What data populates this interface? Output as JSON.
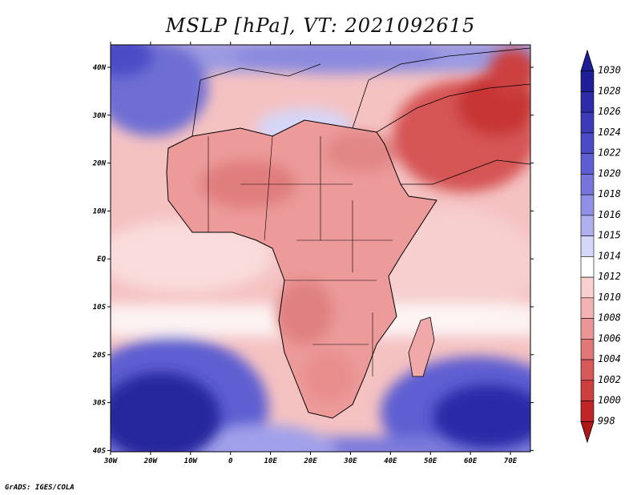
{
  "title": "MSLP [hPa], VT: 2021092615",
  "credit": "GrADS: IGES/COLA",
  "map": {
    "lon_range": [
      -30,
      75
    ],
    "lat_range": [
      -40,
      45
    ],
    "lon_ticks": [
      "30W",
      "20W",
      "10W",
      "0",
      "10E",
      "20E",
      "30E",
      "40E",
      "50E",
      "60E",
      "70E"
    ],
    "lat_ticks": [
      "40N",
      "30N",
      "20N",
      "10N",
      "EQ",
      "10S",
      "20S",
      "30S",
      "40S"
    ],
    "features": [
      "high-pressure-south-atlantic",
      "high-pressure-south-indian",
      "low-pressure-arabia",
      "african-continent",
      "madagascar"
    ]
  },
  "legend": {
    "levels": [
      "1030",
      "1028",
      "1026",
      "1024",
      "1022",
      "1020",
      "1018",
      "1016",
      "1015",
      "1014",
      "1012",
      "1010",
      "1008",
      "1006",
      "1004",
      "1002",
      "1000",
      "998"
    ],
    "colors": {
      "c1030": "#1e1e96",
      "c1028": "#2c2ca8",
      "c1026": "#3b3bb8",
      "c1024": "#4b4bc6",
      "c1022": "#5e5ed2",
      "c1020": "#7575dc",
      "c1018": "#9090e6",
      "c1016": "#b0b0ef",
      "c1015": "#d6d6f8",
      "c1014": "#ffffff",
      "c1012": "#f9d0d0",
      "c1010": "#f2b3b3",
      "c1008": "#ea9696",
      "c1006": "#e07676",
      "c1004": "#d75a5a",
      "c1002": "#cc3f3f",
      "c1000": "#c02626",
      "c998": "#b01818"
    }
  }
}
